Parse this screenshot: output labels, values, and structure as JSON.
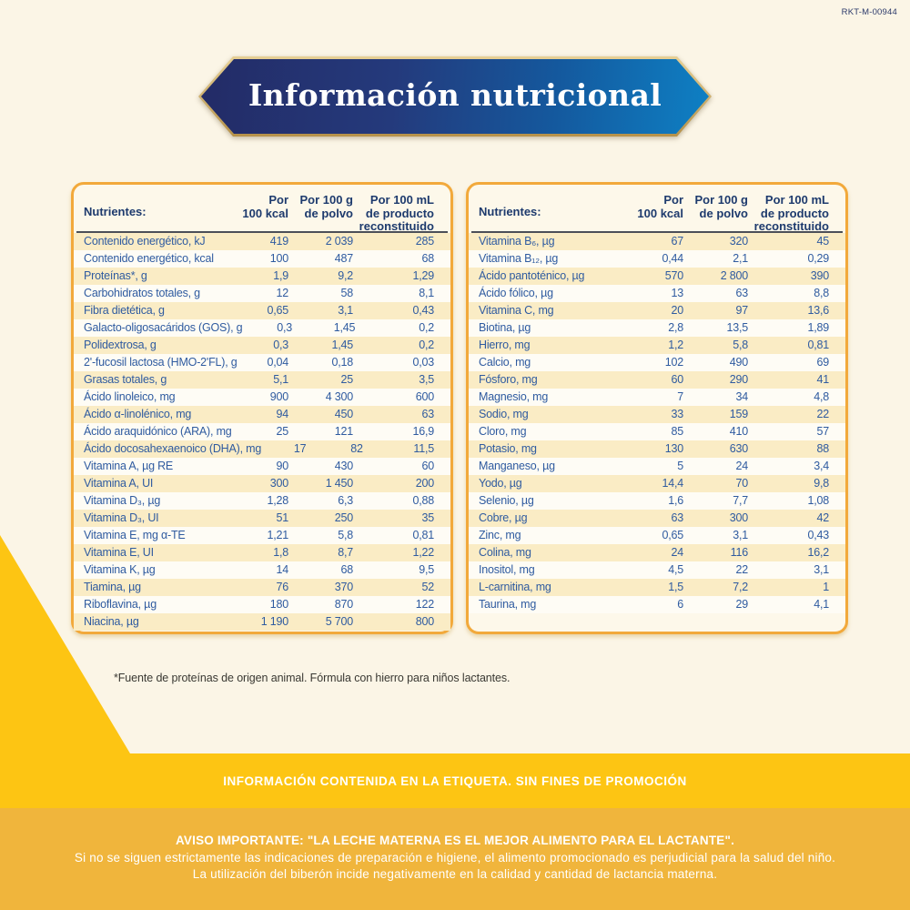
{
  "corner_code": "RKT-M-00944",
  "banner": {
    "title": "Información nutricional"
  },
  "footnote": "*Fuente de proteínas de origen animal. Fórmula con hierro para niños lactantes.",
  "bands": {
    "label_info": "INFORMACIÓN CONTENIDA EN LA ETIQUETA. SIN FINES DE PROMOCIÓN",
    "warning_line1": "AVISO IMPORTANTE: \"LA LECHE MATERNA ES EL MEJOR ALIMENTO PARA EL LACTANTE\".",
    "warning_line2": "Si no se siguen estrictamente las indicaciones de preparación e higiene, el alimento promocionado es perjudicial para la salud del niño.",
    "warning_line3": "La utilización del biberón incide negativamente en la calidad y cantidad de lactancia materna."
  },
  "colors": {
    "background_cream": "#FBF5E6",
    "banner_navy": "#232B66",
    "banner_blue": "#0E80C4",
    "banner_gold_border": "#C2A05A",
    "table_border_orange": "#F2A93B",
    "row_stripe_yellow": "#FAECC5",
    "row_text_blue": "#2F5BA0",
    "header_text_navy": "#1D3A6D",
    "band_bright_yellow": "#FDC513",
    "band_warning_orange": "#F0B53C"
  },
  "tables": [
    {
      "nutrients_label": "Nutrientes:",
      "col1": "Por\n100 kcal",
      "col2": "Por 100 g\nde polvo",
      "col3": "Por 100 mL\nde producto\nreconstituido",
      "rows": [
        {
          "name": "Contenido energético, kJ",
          "per_100_kcal": "419",
          "per_100_g": "2 039",
          "per_100_ml": "285"
        },
        {
          "name": "Contenido energético, kcal",
          "per_100_kcal": "100",
          "per_100_g": "487",
          "per_100_ml": "68"
        },
        {
          "name": "Proteínas*, g",
          "per_100_kcal": "1,9",
          "per_100_g": "9,2",
          "per_100_ml": "1,29"
        },
        {
          "name": "Carbohidratos totales, g",
          "per_100_kcal": "12",
          "per_100_g": "58",
          "per_100_ml": "8,1"
        },
        {
          "name": "Fibra dietética, g",
          "per_100_kcal": "0,65",
          "per_100_g": "3,1",
          "per_100_ml": "0,43"
        },
        {
          "name": "Galacto-oligosacáridos (GOS), g",
          "per_100_kcal": "0,3",
          "per_100_g": "1,45",
          "per_100_ml": "0,2"
        },
        {
          "name": "Polidextrosa, g",
          "per_100_kcal": "0,3",
          "per_100_g": "1,45",
          "per_100_ml": "0,2"
        },
        {
          "name": "2'-fucosil lactosa (HMO-2'FL), g",
          "per_100_kcal": "0,04",
          "per_100_g": "0,18",
          "per_100_ml": "0,03"
        },
        {
          "name": "Grasas totales, g",
          "per_100_kcal": "5,1",
          "per_100_g": "25",
          "per_100_ml": "3,5"
        },
        {
          "name": "Ácido linoleico, mg",
          "per_100_kcal": "900",
          "per_100_g": "4 300",
          "per_100_ml": "600"
        },
        {
          "name": "Ácido α-linolénico, mg",
          "per_100_kcal": "94",
          "per_100_g": "450",
          "per_100_ml": "63"
        },
        {
          "name": "Ácido araquidónico (ARA), mg",
          "per_100_kcal": "25",
          "per_100_g": "121",
          "per_100_ml": "16,9"
        },
        {
          "name": "Ácido docosahexaenoico (DHA), mg",
          "per_100_kcal": "17",
          "per_100_g": "82",
          "per_100_ml": "11,5"
        },
        {
          "name": "Vitamina A, µg RE",
          "per_100_kcal": "90",
          "per_100_g": "430",
          "per_100_ml": "60"
        },
        {
          "name": "Vitamina A, UI",
          "per_100_kcal": "300",
          "per_100_g": "1 450",
          "per_100_ml": "200"
        },
        {
          "name": "Vitamina D₃, µg",
          "per_100_kcal": "1,28",
          "per_100_g": "6,3",
          "per_100_ml": "0,88"
        },
        {
          "name": "Vitamina D₃, UI",
          "per_100_kcal": "51",
          "per_100_g": "250",
          "per_100_ml": "35"
        },
        {
          "name": "Vitamina E, mg α-TE",
          "per_100_kcal": "1,21",
          "per_100_g": "5,8",
          "per_100_ml": "0,81"
        },
        {
          "name": "Vitamina E, UI",
          "per_100_kcal": "1,8",
          "per_100_g": "8,7",
          "per_100_ml": "1,22"
        },
        {
          "name": "Vitamina K, µg",
          "per_100_kcal": "14",
          "per_100_g": "68",
          "per_100_ml": "9,5"
        },
        {
          "name": "Tiamina, µg",
          "per_100_kcal": "76",
          "per_100_g": "370",
          "per_100_ml": "52"
        },
        {
          "name": "Riboflavina, µg",
          "per_100_kcal": "180",
          "per_100_g": "870",
          "per_100_ml": "122"
        },
        {
          "name": "Niacina, µg",
          "per_100_kcal": "1 190",
          "per_100_g": "5 700",
          "per_100_ml": "800"
        }
      ]
    },
    {
      "nutrients_label": "Nutrientes:",
      "col1": "Por\n100 kcal",
      "col2": "Por 100 g\nde polvo",
      "col3": "Por 100 mL\nde producto\nreconstituido",
      "rows": [
        {
          "name": "Vitamina B₆, µg",
          "per_100_kcal": "67",
          "per_100_g": "320",
          "per_100_ml": "45"
        },
        {
          "name": "Vitamina B₁₂, µg",
          "per_100_kcal": "0,44",
          "per_100_g": "2,1",
          "per_100_ml": "0,29"
        },
        {
          "name": "Ácido pantoténico, µg",
          "per_100_kcal": "570",
          "per_100_g": "2 800",
          "per_100_ml": "390"
        },
        {
          "name": "Ácido fólico, µg",
          "per_100_kcal": "13",
          "per_100_g": "63",
          "per_100_ml": "8,8"
        },
        {
          "name": "Vitamina C, mg",
          "per_100_kcal": "20",
          "per_100_g": "97",
          "per_100_ml": "13,6"
        },
        {
          "name": "Biotina, µg",
          "per_100_kcal": "2,8",
          "per_100_g": "13,5",
          "per_100_ml": "1,89"
        },
        {
          "name": "Hierro, mg",
          "per_100_kcal": "1,2",
          "per_100_g": "5,8",
          "per_100_ml": "0,81"
        },
        {
          "name": "Calcio, mg",
          "per_100_kcal": "102",
          "per_100_g": "490",
          "per_100_ml": "69"
        },
        {
          "name": "Fósforo, mg",
          "per_100_kcal": "60",
          "per_100_g": "290",
          "per_100_ml": "41"
        },
        {
          "name": "Magnesio, mg",
          "per_100_kcal": "7",
          "per_100_g": "34",
          "per_100_ml": "4,8"
        },
        {
          "name": "Sodio, mg",
          "per_100_kcal": "33",
          "per_100_g": "159",
          "per_100_ml": "22"
        },
        {
          "name": "Cloro, mg",
          "per_100_kcal": "85",
          "per_100_g": "410",
          "per_100_ml": "57"
        },
        {
          "name": "Potasio, mg",
          "per_100_kcal": "130",
          "per_100_g": "630",
          "per_100_ml": "88"
        },
        {
          "name": "Manganeso, µg",
          "per_100_kcal": "5",
          "per_100_g": "24",
          "per_100_ml": "3,4"
        },
        {
          "name": "Yodo, µg",
          "per_100_kcal": "14,4",
          "per_100_g": "70",
          "per_100_ml": "9,8"
        },
        {
          "name": "Selenio, µg",
          "per_100_kcal": "1,6",
          "per_100_g": "7,7",
          "per_100_ml": "1,08"
        },
        {
          "name": "Cobre, µg",
          "per_100_kcal": "63",
          "per_100_g": "300",
          "per_100_ml": "42"
        },
        {
          "name": "Zinc, mg",
          "per_100_kcal": "0,65",
          "per_100_g": "3,1",
          "per_100_ml": "0,43"
        },
        {
          "name": "Colina, mg",
          "per_100_kcal": "24",
          "per_100_g": "116",
          "per_100_ml": "16,2"
        },
        {
          "name": "Inositol, mg",
          "per_100_kcal": "4,5",
          "per_100_g": "22",
          "per_100_ml": "3,1"
        },
        {
          "name": "L-carnitina, mg",
          "per_100_kcal": "1,5",
          "per_100_g": "7,2",
          "per_100_ml": "1"
        },
        {
          "name": "Taurina, mg",
          "per_100_kcal": "6",
          "per_100_g": "29",
          "per_100_ml": "4,1"
        }
      ]
    }
  ]
}
